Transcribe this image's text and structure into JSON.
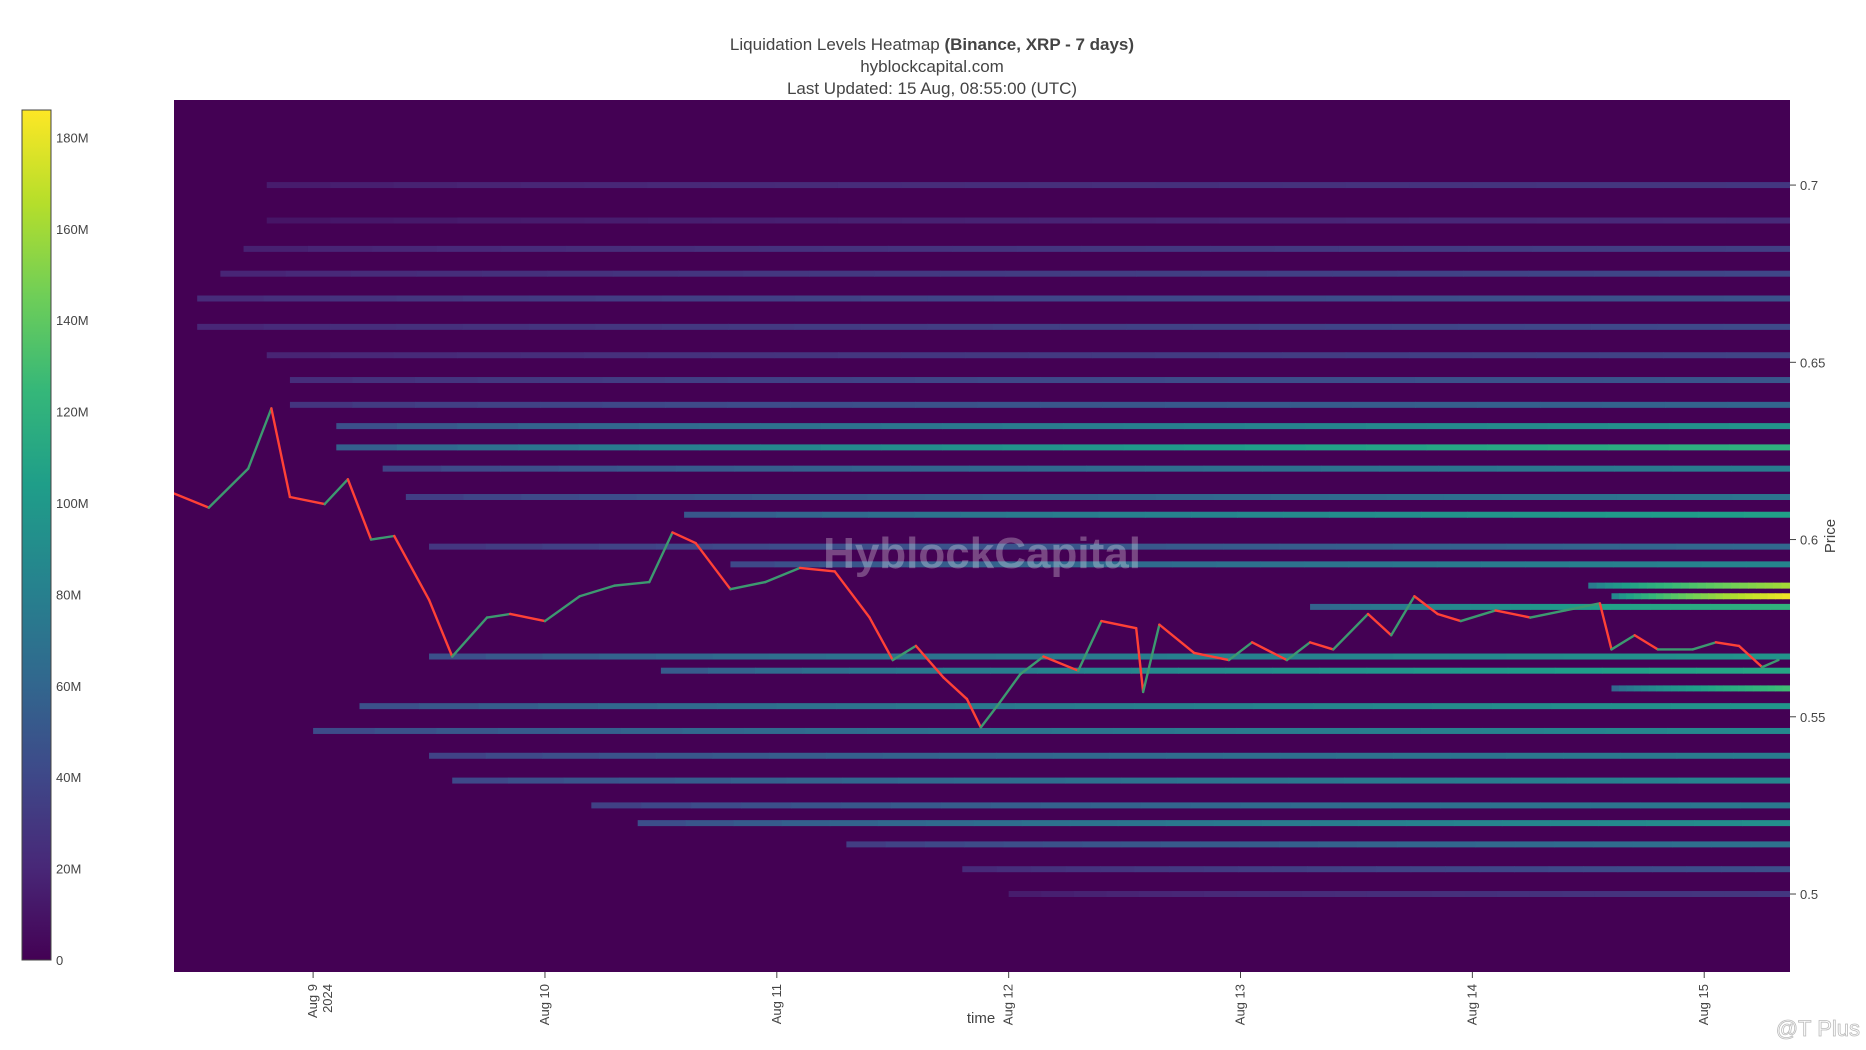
{
  "chart_data": {
    "type": "heatmap",
    "title": "Liquidation Levels Heatmap",
    "title_bold": "(Binance, XRP - 7 days)",
    "subtitle": "hyblockcapital.com",
    "updated": "Last Updated: 15 Aug, 08:55:00 (UTC)",
    "xlabel": "time",
    "ylabel": "Price",
    "x_ticks": [
      "Aug 9",
      "Aug 10",
      "Aug 11",
      "Aug 12",
      "Aug 13",
      "Aug 14",
      "Aug 15"
    ],
    "x_tick_year": "2024",
    "x_range": [
      8.4,
      15.37
    ],
    "y_ticks": [
      0.5,
      0.55,
      0.6,
      0.65,
      0.7
    ],
    "y_tick_labels": [
      "0.5",
      "0.55",
      "0.6",
      "0.65",
      "0.7"
    ],
    "ylim": [
      0.478,
      0.724
    ],
    "colorbar": {
      "ticks": [
        "0",
        "20M",
        "40M",
        "60M",
        "80M",
        "100M",
        "120M",
        "140M",
        "160M",
        "180M"
      ],
      "tick_values": [
        0,
        20,
        40,
        60,
        80,
        100,
        120,
        140,
        160,
        180
      ],
      "max": 186,
      "colorscale": "Viridis"
    },
    "price_series": {
      "name": "XRP price",
      "x": [
        8.4,
        8.55,
        8.72,
        8.82,
        8.9,
        9.05,
        9.15,
        9.25,
        9.35,
        9.5,
        9.6,
        9.75,
        9.85,
        10.0,
        10.15,
        10.3,
        10.45,
        10.55,
        10.65,
        10.8,
        10.95,
        11.1,
        11.25,
        11.4,
        11.5,
        11.6,
        11.72,
        11.82,
        11.88,
        11.95,
        12.05,
        12.15,
        12.3,
        12.4,
        12.55,
        12.58,
        12.65,
        12.8,
        12.95,
        13.05,
        13.2,
        13.3,
        13.4,
        13.55,
        13.65,
        13.75,
        13.85,
        13.95,
        14.1,
        14.25,
        14.4,
        14.55,
        14.6,
        14.7,
        14.8,
        14.95,
        15.05,
        15.15,
        15.25,
        15.32
      ],
      "y": [
        0.613,
        0.609,
        0.62,
        0.637,
        0.612,
        0.61,
        0.617,
        0.6,
        0.601,
        0.583,
        0.567,
        0.578,
        0.579,
        0.577,
        0.584,
        0.587,
        0.588,
        0.602,
        0.599,
        0.586,
        0.588,
        0.592,
        0.591,
        0.578,
        0.566,
        0.57,
        0.561,
        0.555,
        0.547,
        0.553,
        0.562,
        0.567,
        0.563,
        0.577,
        0.575,
        0.557,
        0.576,
        0.568,
        0.566,
        0.571,
        0.566,
        0.571,
        0.569,
        0.579,
        0.573,
        0.584,
        0.579,
        0.577,
        0.58,
        0.578,
        0.58,
        0.582,
        0.569,
        0.573,
        0.569,
        0.569,
        0.571,
        0.57,
        0.564,
        0.566
      ],
      "colors": {
        "up": "#3d9970",
        "down": "#ff4136"
      }
    },
    "liquidation_bands": [
      {
        "price": 0.7,
        "intensity": 30,
        "start": 8.8
      },
      {
        "price": 0.69,
        "intensity": 22,
        "start": 8.8
      },
      {
        "price": 0.682,
        "intensity": 35,
        "start": 8.7
      },
      {
        "price": 0.675,
        "intensity": 40,
        "start": 8.6
      },
      {
        "price": 0.668,
        "intensity": 48,
        "start": 8.5
      },
      {
        "price": 0.66,
        "intensity": 42,
        "start": 8.5
      },
      {
        "price": 0.652,
        "intensity": 38,
        "start": 8.8
      },
      {
        "price": 0.645,
        "intensity": 50,
        "start": 8.9
      },
      {
        "price": 0.638,
        "intensity": 60,
        "start": 8.9
      },
      {
        "price": 0.632,
        "intensity": 95,
        "start": 9.1
      },
      {
        "price": 0.626,
        "intensity": 118,
        "start": 9.1
      },
      {
        "price": 0.62,
        "intensity": 78,
        "start": 9.3
      },
      {
        "price": 0.612,
        "intensity": 72,
        "start": 9.4
      },
      {
        "price": 0.607,
        "intensity": 105,
        "start": 10.6
      },
      {
        "price": 0.598,
        "intensity": 62,
        "start": 9.5
      },
      {
        "price": 0.593,
        "intensity": 85,
        "start": 10.8
      },
      {
        "price": 0.587,
        "intensity": 160,
        "start": 14.5
      },
      {
        "price": 0.584,
        "intensity": 182,
        "start": 14.6
      },
      {
        "price": 0.581,
        "intensity": 120,
        "start": 13.3
      },
      {
        "price": 0.567,
        "intensity": 95,
        "start": 9.5
      },
      {
        "price": 0.563,
        "intensity": 110,
        "start": 10.5
      },
      {
        "price": 0.558,
        "intensity": 128,
        "start": 14.6
      },
      {
        "price": 0.553,
        "intensity": 96,
        "start": 9.2
      },
      {
        "price": 0.546,
        "intensity": 88,
        "start": 9.0
      },
      {
        "price": 0.539,
        "intensity": 78,
        "start": 9.5
      },
      {
        "price": 0.532,
        "intensity": 85,
        "start": 9.6
      },
      {
        "price": 0.525,
        "intensity": 75,
        "start": 10.2
      },
      {
        "price": 0.52,
        "intensity": 92,
        "start": 10.4
      },
      {
        "price": 0.514,
        "intensity": 70,
        "start": 11.3
      },
      {
        "price": 0.507,
        "intensity": 45,
        "start": 11.8
      },
      {
        "price": 0.5,
        "intensity": 30,
        "start": 12.0
      }
    ],
    "watermark": "HyblockCapital"
  },
  "corner_mark": "@T Plus"
}
